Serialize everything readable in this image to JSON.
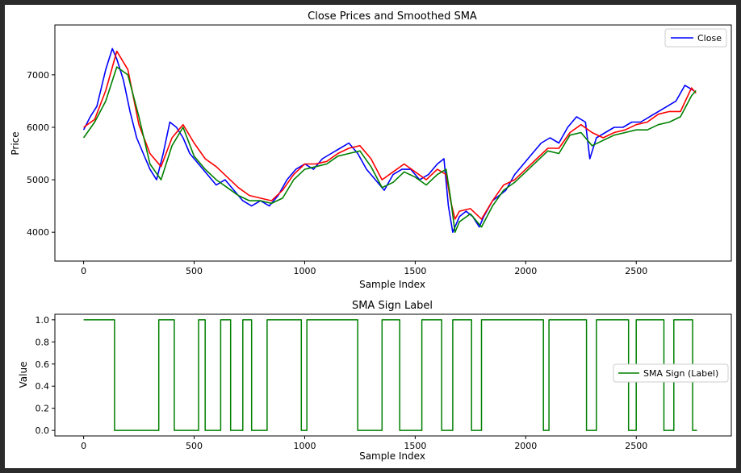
{
  "chart_data": [
    {
      "type": "line",
      "title": "Close Prices and Smoothed SMA",
      "xlabel": "Sample Index",
      "ylabel": "Price",
      "xlim": [
        -130,
        2930
      ],
      "ylim": [
        3450,
        7950
      ],
      "xticks": [
        0,
        500,
        1000,
        1500,
        2000,
        2500
      ],
      "yticks": [
        4000,
        5000,
        6000,
        7000
      ],
      "grid": false,
      "legend_position": "top-right",
      "colors": {
        "close": "#0000ff",
        "sma_red": "#ff0000",
        "sma_green": "#008000"
      },
      "series": [
        {
          "name": "Close",
          "color": "#0000ff",
          "x": [
            0,
            30,
            60,
            100,
            130,
            150,
            180,
            210,
            240,
            270,
            300,
            330,
            360,
            390,
            420,
            450,
            480,
            520,
            560,
            600,
            640,
            680,
            720,
            760,
            800,
            840,
            880,
            920,
            960,
            1000,
            1040,
            1080,
            1120,
            1160,
            1200,
            1240,
            1280,
            1320,
            1360,
            1400,
            1440,
            1480,
            1520,
            1560,
            1600,
            1630,
            1650,
            1670,
            1700,
            1730,
            1760,
            1790,
            1810,
            1850,
            1880,
            1910,
            1950,
            1990,
            2030,
            2070,
            2110,
            2150,
            2190,
            2230,
            2270,
            2290,
            2320,
            2360,
            2400,
            2440,
            2480,
            2520,
            2560,
            2600,
            2640,
            2680,
            2720,
            2760
          ],
          "y": [
            5950,
            6200,
            6400,
            7100,
            7500,
            7300,
            6900,
            6300,
            5800,
            5500,
            5200,
            5000,
            5500,
            6100,
            6000,
            5800,
            5500,
            5300,
            5100,
            4900,
            5000,
            4800,
            4600,
            4500,
            4600,
            4500,
            4700,
            5000,
            5200,
            5300,
            5200,
            5400,
            5500,
            5600,
            5700,
            5500,
            5200,
            5000,
            4800,
            5100,
            5200,
            5200,
            5000,
            5100,
            5300,
            5400,
            4500,
            4000,
            4300,
            4400,
            4300,
            4100,
            4300,
            4600,
            4700,
            4800,
            5100,
            5300,
            5500,
            5700,
            5800,
            5700,
            6000,
            6200,
            6100,
            5400,
            5800,
            5900,
            6000,
            6000,
            6100,
            6100,
            6200,
            6300,
            6400,
            6500,
            6800,
            6700
          ]
        },
        {
          "name": "",
          "color": "#ff0000",
          "x": [
            0,
            50,
            100,
            150,
            200,
            250,
            300,
            350,
            400,
            450,
            500,
            550,
            600,
            650,
            700,
            750,
            800,
            850,
            900,
            950,
            1000,
            1050,
            1100,
            1150,
            1200,
            1250,
            1300,
            1350,
            1400,
            1450,
            1500,
            1550,
            1600,
            1640,
            1660,
            1680,
            1700,
            1750,
            1800,
            1850,
            1900,
            1950,
            2000,
            2050,
            2100,
            2150,
            2200,
            2250,
            2300,
            2350,
            2400,
            2450,
            2500,
            2550,
            2600,
            2650,
            2700,
            2750,
            2770
          ],
          "y": [
            6000,
            6150,
            6700,
            7450,
            7100,
            6050,
            5500,
            5250,
            5800,
            6050,
            5700,
            5400,
            5250,
            5050,
            4850,
            4700,
            4650,
            4600,
            4800,
            5100,
            5300,
            5300,
            5350,
            5500,
            5600,
            5650,
            5400,
            5000,
            5150,
            5300,
            5150,
            5000,
            5200,
            5100,
            4600,
            4250,
            4400,
            4450,
            4250,
            4600,
            4900,
            5000,
            5200,
            5400,
            5600,
            5600,
            5900,
            6050,
            5900,
            5800,
            5900,
            5950,
            6050,
            6100,
            6250,
            6300,
            6300,
            6750,
            6650
          ]
        },
        {
          "name": "",
          "color": "#008000",
          "x": [
            0,
            50,
            100,
            150,
            200,
            250,
            300,
            350,
            400,
            450,
            500,
            550,
            600,
            650,
            700,
            750,
            800,
            850,
            900,
            950,
            1000,
            1050,
            1100,
            1150,
            1200,
            1250,
            1300,
            1350,
            1400,
            1450,
            1500,
            1550,
            1600,
            1640,
            1660,
            1680,
            1700,
            1750,
            1800,
            1850,
            1900,
            1950,
            2000,
            2050,
            2100,
            2150,
            2200,
            2250,
            2300,
            2350,
            2400,
            2450,
            2500,
            2550,
            2600,
            2650,
            2700,
            2750,
            2770
          ],
          "y": [
            5800,
            6100,
            6500,
            7150,
            7000,
            6200,
            5300,
            5000,
            5650,
            6000,
            5450,
            5200,
            5000,
            4850,
            4700,
            4600,
            4600,
            4550,
            4650,
            5000,
            5200,
            5250,
            5300,
            5450,
            5500,
            5550,
            5250,
            4850,
            4950,
            5150,
            5050,
            4900,
            5100,
            5200,
            4650,
            4000,
            4200,
            4350,
            4100,
            4500,
            4800,
            4950,
            5150,
            5350,
            5550,
            5500,
            5850,
            5900,
            5650,
            5750,
            5850,
            5900,
            5950,
            5950,
            6050,
            6100,
            6200,
            6600,
            6700
          ]
        }
      ]
    },
    {
      "type": "line",
      "title": "SMA Sign Label",
      "xlabel": "Sample Index",
      "ylabel": "Value",
      "xlim": [
        -130,
        2930
      ],
      "ylim": [
        -0.05,
        1.05
      ],
      "xticks": [
        0,
        500,
        1000,
        1500,
        2000,
        2500
      ],
      "yticks": [
        0.0,
        0.2,
        0.4,
        0.6,
        0.8,
        1.0
      ],
      "grid": false,
      "legend_position": "center-right",
      "series": [
        {
          "name": "SMA Sign (Label)",
          "color": "#008000",
          "step": true,
          "x": [
            0,
            140,
            340,
            410,
            520,
            550,
            620,
            665,
            720,
            760,
            830,
            985,
            1010,
            1240,
            1350,
            1430,
            1530,
            1620,
            1670,
            1755,
            1800,
            2080,
            2105,
            2275,
            2320,
            2465,
            2500,
            2625,
            2670,
            2755,
            2775
          ],
          "y": [
            1,
            0,
            1,
            0,
            1,
            0,
            1,
            0,
            1,
            0,
            1,
            0,
            1,
            0,
            1,
            0,
            1,
            0,
            1,
            0,
            1,
            0,
            1,
            0,
            1,
            0,
            1,
            0,
            1,
            0,
            0
          ]
        }
      ]
    }
  ]
}
